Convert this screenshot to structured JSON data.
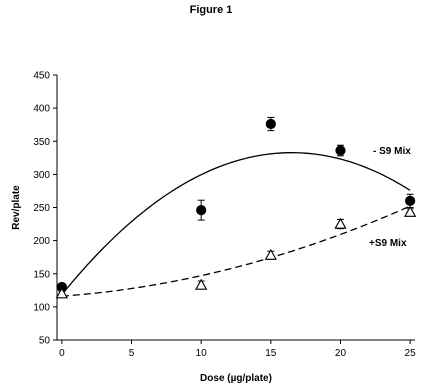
{
  "page": {
    "title": "Figure 1"
  },
  "chart_data": {
    "type": "scatter",
    "title": "Figure 1",
    "xlabel": "Dose (µg/plate)",
    "ylabel": "Rev/plate",
    "xlim": [
      0,
      25
    ],
    "ylim": [
      50,
      450
    ],
    "xticks": [
      0,
      5,
      10,
      15,
      20,
      25
    ],
    "yticks": [
      50,
      100,
      150,
      200,
      250,
      300,
      350,
      400,
      450
    ],
    "grid": false,
    "series": [
      {
        "name": "- S9 Mix",
        "marker": "filled-circle",
        "line": "solid-fitted-curve",
        "color": "#000000",
        "x": [
          0,
          10,
          15,
          20,
          25
        ],
        "y": [
          130,
          246,
          376,
          336,
          260
        ],
        "error": [
          5,
          15,
          10,
          8,
          10
        ]
      },
      {
        "name": "+S9 Mix",
        "marker": "open-triangle",
        "line": "dashed-fitted-curve",
        "color": "#000000",
        "x": [
          0,
          10,
          15,
          20,
          25
        ],
        "y": [
          120,
          133,
          178,
          225,
          243
        ],
        "error": [
          4,
          6,
          6,
          7,
          5
        ]
      }
    ]
  }
}
